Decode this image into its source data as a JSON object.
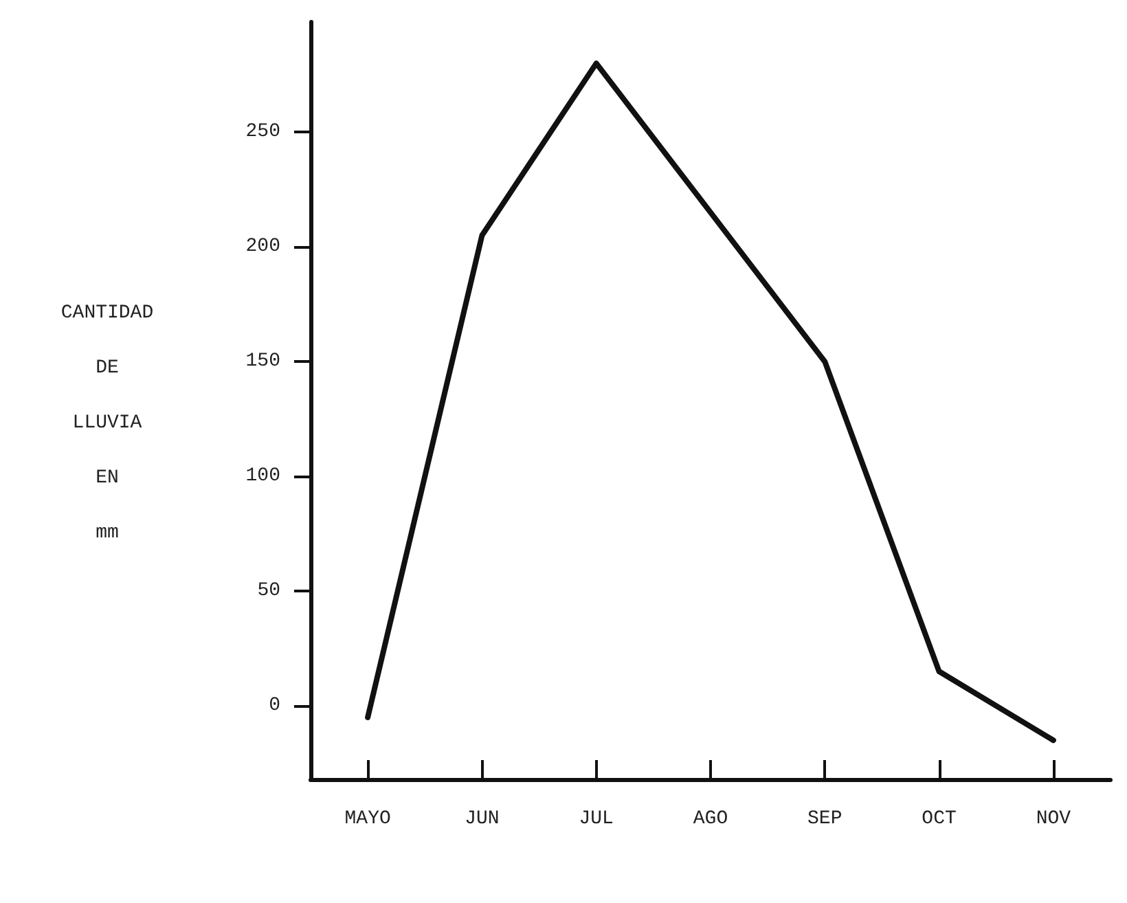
{
  "chart_data": {
    "type": "line",
    "ylabel": "CANTIDAD\nDE\nLLUVIA\nEN\nmm",
    "categories": [
      "MAYO",
      "JUN",
      "JUL",
      "AGO",
      "SEP",
      "OCT",
      "NOV"
    ],
    "series": [
      {
        "color": "#111111",
        "values": [
          -5,
          205,
          280,
          215,
          150,
          15,
          -15
        ]
      }
    ],
    "ylim": [
      -32,
      298
    ],
    "yticks": [
      0,
      50,
      100,
      150,
      200,
      250
    ],
    "grid": false,
    "marker": "none",
    "line_style": "solid"
  }
}
